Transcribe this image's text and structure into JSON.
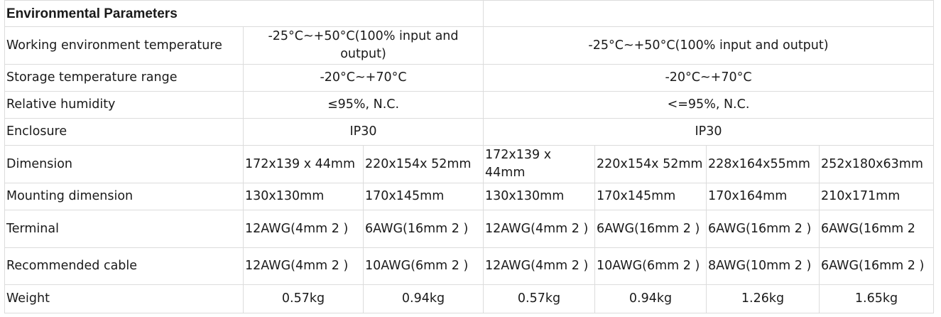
{
  "title": "Environmental Parameters",
  "rows": {
    "working_temp": {
      "label": "Working environment temperature",
      "a": "-25°C~+50°C(100% input and output)",
      "b": "-25°C~+50°C(100% input and output)"
    },
    "storage_temp": {
      "label": "Storage temperature range",
      "a": "-20°C~+70°C",
      "b": "-20°C~+70°C"
    },
    "humidity": {
      "label": "Relative humidity",
      "a": "≤95%, N.C.",
      "b": "<=95%, N.C."
    },
    "enclosure": {
      "label": "Enclosure",
      "a": "IP30",
      "b": "IP30"
    },
    "dimension": {
      "label": "Dimension",
      "values": [
        "172x139 x 44mm",
        "220x154x 52mm",
        "172x139 x 44mm",
        "220x154x 52mm",
        "228x164x55mm",
        "252x180x63mm"
      ]
    },
    "mounting": {
      "label": "Mounting dimension",
      "values": [
        "130x130mm",
        "170x145mm",
        "130x130mm",
        "170x145mm",
        "170x164mm",
        "210x171mm"
      ]
    },
    "terminal": {
      "label": "Terminal",
      "values": [
        "12AWG(4mm 2 )",
        "6AWG(16mm 2 )",
        "12AWG(4mm 2 )",
        "6AWG(16mm 2 )",
        "6AWG(16mm 2 )",
        "6AWG(16mm 2"
      ]
    },
    "cable": {
      "label": "Recommended cable",
      "values": [
        "12AWG(4mm 2 )",
        "10AWG(6mm 2 )",
        "12AWG(4mm 2 )",
        "10AWG(6mm 2 )",
        "8AWG(10mm 2 )",
        "6AWG(16mm 2 )"
      ]
    },
    "weight": {
      "label": "Weight",
      "values": [
        "0.57kg",
        "0.94kg",
        "0.57kg",
        "0.94kg",
        "1.26kg",
        "1.65kg"
      ]
    }
  }
}
